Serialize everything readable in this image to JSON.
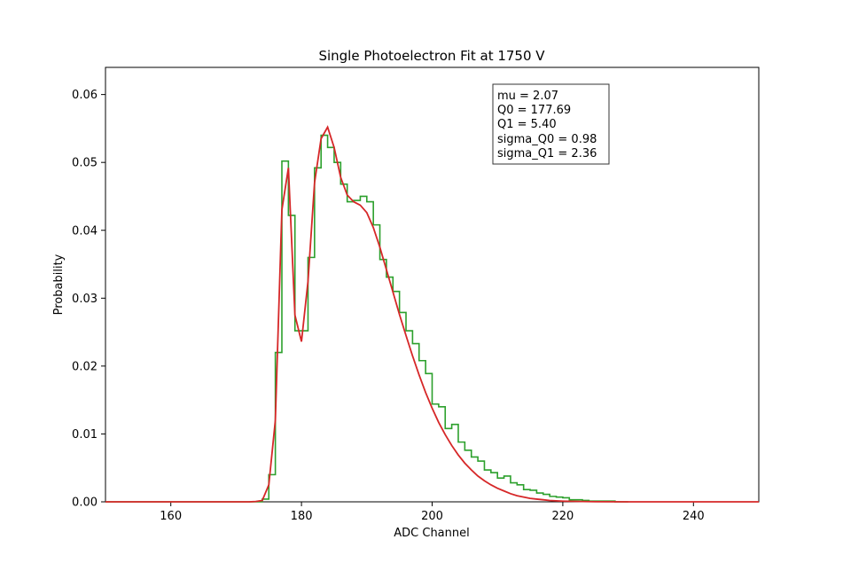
{
  "chart_data": {
    "type": "line",
    "title": "Single Photoelectron Fit at 1750 V",
    "xlabel": "ADC Channel",
    "ylabel": "Probability",
    "xlim": [
      150,
      250
    ],
    "ylim": [
      0,
      0.064
    ],
    "xticks": [
      160,
      180,
      200,
      220,
      240
    ],
    "yticks": [
      0.0,
      0.01,
      0.02,
      0.03,
      0.04,
      0.05,
      0.06
    ],
    "ytick_labels": [
      "0.00",
      "0.01",
      "0.02",
      "0.03",
      "0.04",
      "0.05",
      "0.06"
    ],
    "grid": false,
    "histogram": {
      "color": "#2ca02c",
      "bin_width": 1,
      "bins": [
        [
          150,
          0
        ],
        [
          151,
          0
        ],
        [
          152,
          0
        ],
        [
          153,
          0
        ],
        [
          154,
          0
        ],
        [
          155,
          0
        ],
        [
          156,
          0
        ],
        [
          157,
          0
        ],
        [
          158,
          0
        ],
        [
          159,
          0
        ],
        [
          160,
          0
        ],
        [
          161,
          0
        ],
        [
          162,
          0
        ],
        [
          163,
          0
        ],
        [
          164,
          0
        ],
        [
          165,
          0
        ],
        [
          166,
          0
        ],
        [
          167,
          0
        ],
        [
          168,
          0
        ],
        [
          169,
          0
        ],
        [
          170,
          0
        ],
        [
          171,
          0
        ],
        [
          172,
          0
        ],
        [
          173,
          0
        ],
        [
          174,
          0.0004
        ],
        [
          175,
          0.004
        ],
        [
          176,
          0.022
        ],
        [
          177,
          0.0502
        ],
        [
          178,
          0.0422
        ],
        [
          179,
          0.0252
        ],
        [
          180,
          0.0252
        ],
        [
          181,
          0.036
        ],
        [
          182,
          0.0492
        ],
        [
          183,
          0.054
        ],
        [
          184,
          0.0522
        ],
        [
          185,
          0.05
        ],
        [
          186,
          0.0468
        ],
        [
          187,
          0.0442
        ],
        [
          188,
          0.0444
        ],
        [
          189,
          0.045
        ],
        [
          190,
          0.0442
        ],
        [
          191,
          0.0408
        ],
        [
          192,
          0.0357
        ],
        [
          193,
          0.0331
        ],
        [
          194,
          0.031
        ],
        [
          195,
          0.0279
        ],
        [
          196,
          0.0252
        ],
        [
          197,
          0.0233
        ],
        [
          198,
          0.0208
        ],
        [
          199,
          0.0189
        ],
        [
          200,
          0.0144
        ],
        [
          201,
          0.014
        ],
        [
          202,
          0.0108
        ],
        [
          203,
          0.0114
        ],
        [
          204,
          0.0088
        ],
        [
          205,
          0.0076
        ],
        [
          206,
          0.0066
        ],
        [
          207,
          0.006
        ],
        [
          208,
          0.0047
        ],
        [
          209,
          0.0043
        ],
        [
          210,
          0.0035
        ],
        [
          211,
          0.0038
        ],
        [
          212,
          0.0028
        ],
        [
          213,
          0.0025
        ],
        [
          214,
          0.0018
        ],
        [
          215,
          0.0017
        ],
        [
          216,
          0.0013
        ],
        [
          217,
          0.0011
        ],
        [
          218,
          0.0008
        ],
        [
          219,
          0.0007
        ],
        [
          220,
          0.0006
        ],
        [
          221,
          0.0003
        ],
        [
          222,
          0.0003
        ],
        [
          223,
          0.0002
        ],
        [
          224,
          0.0001
        ],
        [
          225,
          0.0001
        ],
        [
          226,
          0.0001
        ],
        [
          227,
          0.0001
        ],
        [
          228,
          0
        ],
        [
          229,
          0
        ]
      ]
    },
    "fit_curve": {
      "color": "#d62728",
      "points": [
        [
          150,
          0
        ],
        [
          172,
          0
        ],
        [
          173,
          5e-05
        ],
        [
          174,
          0.0002
        ],
        [
          175,
          0.0025
        ],
        [
          176,
          0.012
        ],
        [
          177,
          0.043
        ],
        [
          178,
          0.0492
        ],
        [
          179,
          0.0275
        ],
        [
          180,
          0.0236
        ],
        [
          181,
          0.0325
        ],
        [
          182,
          0.047
        ],
        [
          183,
          0.0535
        ],
        [
          184,
          0.0552
        ],
        [
          185,
          0.0522
        ],
        [
          186,
          0.0478
        ],
        [
          187,
          0.0452
        ],
        [
          188,
          0.0442
        ],
        [
          189,
          0.0437
        ],
        [
          190,
          0.0426
        ],
        [
          191,
          0.0404
        ],
        [
          192,
          0.0375
        ],
        [
          193,
          0.0342
        ],
        [
          194,
          0.0309
        ],
        [
          195,
          0.0276
        ],
        [
          196,
          0.0245
        ],
        [
          197,
          0.0215
        ],
        [
          198,
          0.0187
        ],
        [
          199,
          0.0161
        ],
        [
          200,
          0.0138
        ],
        [
          201,
          0.0117
        ],
        [
          202,
          0.0099
        ],
        [
          203,
          0.0083
        ],
        [
          204,
          0.0069
        ],
        [
          205,
          0.0057
        ],
        [
          206,
          0.0047
        ],
        [
          207,
          0.0038
        ],
        [
          208,
          0.0031
        ],
        [
          209,
          0.0025
        ],
        [
          210,
          0.002
        ],
        [
          211,
          0.0016
        ],
        [
          212,
          0.0012
        ],
        [
          213,
          0.0009
        ],
        [
          214,
          0.0007
        ],
        [
          215,
          0.0005
        ],
        [
          216,
          0.0004
        ],
        [
          217,
          0.0003
        ],
        [
          218,
          0.0002
        ],
        [
          220,
          0.0001
        ],
        [
          225,
          2e-05
        ],
        [
          230,
          0
        ],
        [
          250,
          0
        ]
      ]
    },
    "stats_box": {
      "placement": "upper-right",
      "lines": [
        "mu = 2.07",
        "Q0 = 177.69",
        "Q1 = 5.40",
        "sigma_Q0 = 0.98",
        "sigma_Q1 = 2.36"
      ]
    }
  }
}
